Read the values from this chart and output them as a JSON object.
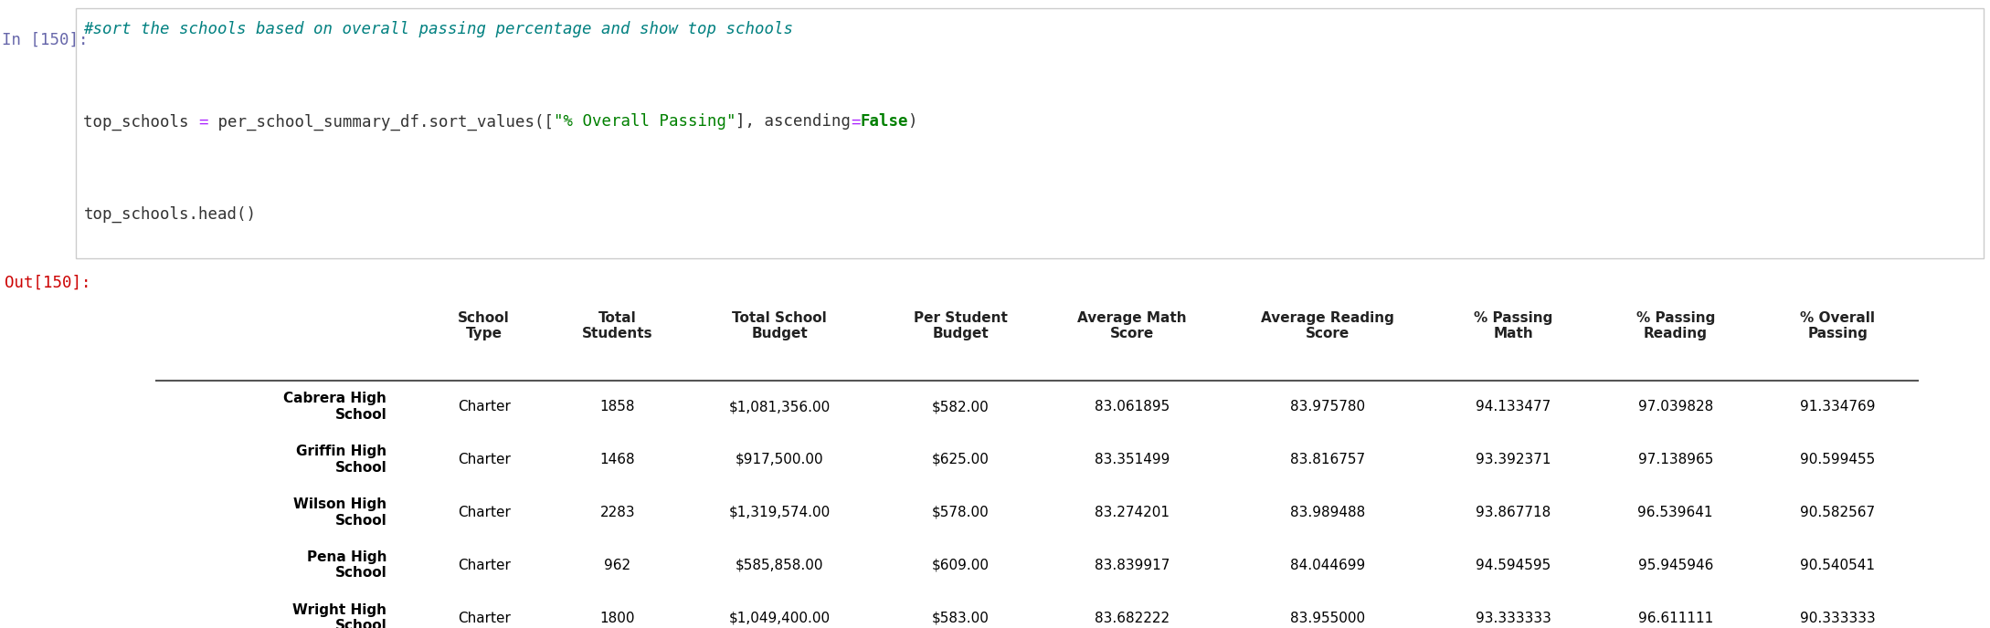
{
  "in_label": "In [150]:",
  "out_label": "Out[150]:",
  "comment": "#sort the schools based on overall passing percentage and show top schools",
  "code_line1_parts": [
    {
      "text": "top_schools ",
      "color": "#333333",
      "bold": false
    },
    {
      "text": "=",
      "color": "#aa22ff",
      "bold": false
    },
    {
      "text": " per_school_summary_df.sort_values([",
      "color": "#333333",
      "bold": false
    },
    {
      "text": "\"% Overall Passing\"",
      "color": "#008000",
      "bold": false
    },
    {
      "text": "], ascending",
      "color": "#333333",
      "bold": false
    },
    {
      "text": "=",
      "color": "#aa22ff",
      "bold": false
    },
    {
      "text": "False",
      "color": "#008000",
      "bold": true
    },
    {
      "text": ")",
      "color": "#333333",
      "bold": false
    }
  ],
  "code_line2": "top_schools.head()",
  "columns": [
    "School\nType",
    "Total\nStudents",
    "Total School\nBudget",
    "Per Student\nBudget",
    "Average Math\nScore",
    "Average Reading\nScore",
    "% Passing\nMath",
    "% Passing\nReading",
    "% Overall\nPassing"
  ],
  "index": [
    "Cabrera High\nSchool",
    "Griffin High\nSchool",
    "Wilson High\nSchool",
    "Pena High\nSchool",
    "Wright High\nSchool"
  ],
  "rows": [
    [
      "Charter",
      "1858",
      "$1,081,356.00",
      "$582.00",
      "83.061895",
      "83.975780",
      "94.133477",
      "97.039828",
      "91.334769"
    ],
    [
      "Charter",
      "1468",
      "$917,500.00",
      "$625.00",
      "83.351499",
      "83.816757",
      "93.392371",
      "97.138965",
      "90.599455"
    ],
    [
      "Charter",
      "2283",
      "$1,319,574.00",
      "$578.00",
      "83.274201",
      "83.989488",
      "93.867718",
      "96.539641",
      "90.582567"
    ],
    [
      "Charter",
      "962",
      "$585,858.00",
      "$609.00",
      "83.839917",
      "84.044699",
      "94.594595",
      "95.945946",
      "90.540541"
    ],
    [
      "Charter",
      "1800",
      "$1,049,400.00",
      "$583.00",
      "83.682222",
      "83.955000",
      "93.333333",
      "96.611111",
      "90.333333"
    ]
  ],
  "row_colors": [
    "#f2f2f2",
    "#ffffff",
    "#f2f2f2",
    "#ffffff",
    "#f2f2f2"
  ],
  "in_label_color": "#6666aa",
  "out_label_color": "#cc0000",
  "comment_color": "#008080",
  "code_bg": "#ffffff",
  "cell_border_color": "#cccccc",
  "header_sep_color": "#555555",
  "font_size_code": 12.5,
  "font_size_table": 11.0
}
